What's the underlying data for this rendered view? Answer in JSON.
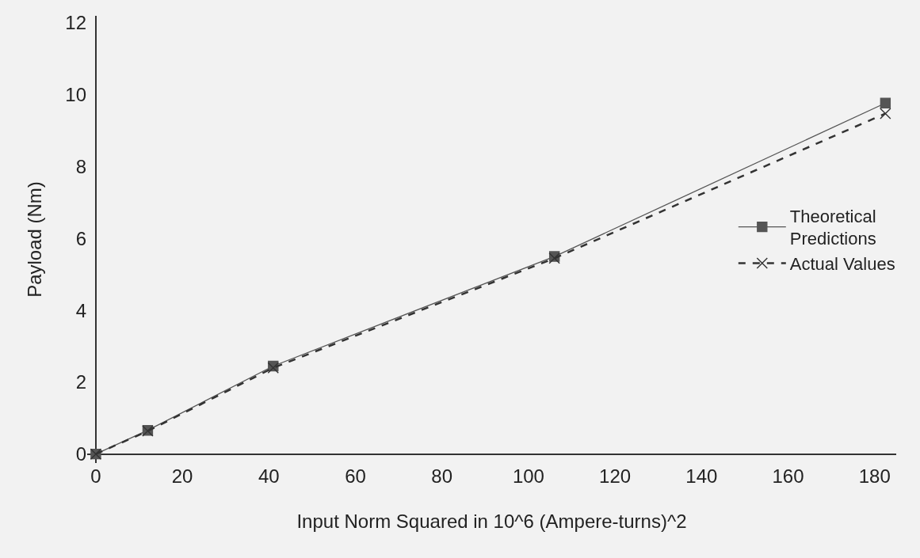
{
  "chart_data": {
    "type": "line",
    "xlabel": "Input Norm Squared in 10^6 (Ampere-turns)^2",
    "ylabel": "Payload (Nm)",
    "xlim": [
      -2,
      185
    ],
    "ylim": [
      -0.25,
      12.2
    ],
    "xticks": [
      0,
      20,
      40,
      60,
      80,
      100,
      120,
      140,
      160,
      180
    ],
    "yticks": [
      0,
      2,
      4,
      6,
      8,
      10,
      12
    ],
    "grid": false,
    "legend": "right",
    "series": [
      {
        "name": "Theoretical Predictions",
        "color": "#555555",
        "marker": "square",
        "line_style": "solid",
        "x": [
          0,
          12,
          41,
          106,
          182.5
        ],
        "values": [
          0,
          0.66,
          2.45,
          5.5,
          9.77
        ]
      },
      {
        "name": "Actual Values",
        "color": "#333333",
        "marker": "cross",
        "line_style": "dashed",
        "x": [
          0,
          12,
          41,
          106,
          182.5
        ],
        "values": [
          0,
          0.64,
          2.4,
          5.45,
          9.48
        ]
      }
    ]
  }
}
